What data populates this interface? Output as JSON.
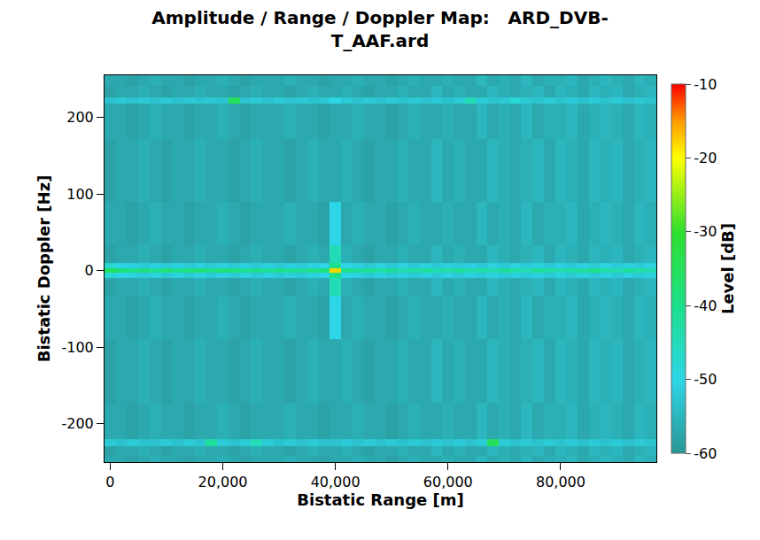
{
  "chart_data": {
    "type": "heatmap",
    "title": "Amplitude / Range / Doppler Map:   ARD_DVB-T_AAF.ard",
    "xlabel": "Bistatic Range [m]",
    "ylabel": "Bistatic Doppler [Hz]",
    "xlim": [
      -1000,
      97000
    ],
    "ylim": [
      -250,
      255
    ],
    "xticks": [
      0,
      {
        "value": 20000,
        "label": "20,000"
      },
      {
        "value": 40000,
        "label": "40,000"
      },
      {
        "value": 60000,
        "label": "60,000"
      },
      {
        "value": 80000,
        "label": "80,000"
      }
    ],
    "yticks": [
      -200,
      -100,
      0,
      100,
      200
    ],
    "grid": false,
    "x": [
      0,
      2000,
      4000,
      6000,
      8000,
      10000,
      12000,
      14000,
      16000,
      18000,
      20000,
      22000,
      24000,
      26000,
      28000,
      30000,
      32000,
      34000,
      36000,
      38000,
      40000,
      42000,
      44000,
      46000,
      48000,
      50000,
      52000,
      54000,
      56000,
      58000,
      60000,
      62000,
      64000,
      66000,
      68000,
      70000,
      72000,
      74000,
      76000,
      78000,
      80000,
      82000,
      84000,
      86000,
      88000,
      90000,
      92000,
      94000,
      96000
    ],
    "y": [
      -250,
      -234,
      -225,
      -216,
      -130,
      -50,
      -15,
      -5,
      0,
      5,
      15,
      50,
      130,
      213,
      222,
      231,
      250
    ],
    "z": [
      [
        -57,
        -57,
        -58,
        -57,
        -56,
        -57,
        -57,
        -58,
        -57,
        -57,
        -56,
        -57,
        -58,
        -57,
        -57,
        -57,
        -56,
        -57,
        -57,
        -58,
        -57,
        -57,
        -56,
        -57,
        -57,
        -58,
        -57,
        -56,
        -57,
        -57,
        -56,
        -57,
        -57,
        -55,
        -57,
        -56,
        -57,
        -55,
        -57,
        -56,
        -56,
        -55,
        -57,
        -56,
        -55,
        -56,
        -57,
        -55,
        -56
      ],
      [
        -58,
        -57,
        -57,
        -56,
        -57,
        -58,
        -57,
        -57,
        -56,
        -57,
        -57,
        -58,
        -57,
        -56,
        -57,
        -57,
        -58,
        -57,
        -56,
        -57,
        -57,
        -56,
        -57,
        -58,
        -57,
        -57,
        -56,
        -57,
        -57,
        -55,
        -57,
        -56,
        -57,
        -57,
        -55,
        -56,
        -57,
        -56,
        -55,
        -57,
        -55,
        -56,
        -57,
        -55,
        -56,
        -55,
        -57,
        -56,
        -55
      ],
      [
        -52,
        -53,
        -52,
        -53,
        -53,
        -52,
        -53,
        -52,
        -53,
        -42,
        -52,
        -53,
        -52,
        -45,
        -52,
        -53,
        -52,
        -53,
        -52,
        -53,
        -53,
        -52,
        -53,
        -52,
        -53,
        -52,
        -53,
        -52,
        -53,
        -52,
        -53,
        -52,
        -53,
        -52,
        -35,
        -52,
        -53,
        -52,
        -53,
        -52,
        -53,
        -52,
        -53,
        -52,
        -53,
        -52,
        -53,
        -52,
        -53
      ],
      [
        -57,
        -57,
        -58,
        -57,
        -56,
        -57,
        -57,
        -58,
        -57,
        -57,
        -56,
        -57,
        -58,
        -57,
        -57,
        -57,
        -56,
        -57,
        -57,
        -58,
        -57,
        -57,
        -56,
        -57,
        -57,
        -58,
        -57,
        -56,
        -57,
        -57,
        -56,
        -57,
        -57,
        -55,
        -57,
        -56,
        -57,
        -55,
        -57,
        -56,
        -56,
        -55,
        -57,
        -56,
        -55,
        -56,
        -57,
        -55,
        -56
      ],
      [
        -58,
        -57,
        -57,
        -56,
        -57,
        -58,
        -57,
        -57,
        -56,
        -57,
        -57,
        -58,
        -57,
        -56,
        -57,
        -57,
        -58,
        -57,
        -56,
        -57,
        -57,
        -56,
        -57,
        -58,
        -57,
        -57,
        -56,
        -57,
        -57,
        -55,
        -57,
        -56,
        -57,
        -57,
        -55,
        -56,
        -57,
        -56,
        -55,
        -57,
        -55,
        -56,
        -57,
        -55,
        -56,
        -55,
        -57,
        -56,
        -55
      ],
      [
        -57,
        -57,
        -58,
        -57,
        -56,
        -57,
        -57,
        -58,
        -57,
        -57,
        -56,
        -57,
        -58,
        -57,
        -57,
        -57,
        -56,
        -57,
        -57,
        -58,
        -50,
        -57,
        -56,
        -57,
        -57,
        -58,
        -57,
        -56,
        -57,
        -57,
        -56,
        -57,
        -57,
        -55,
        -57,
        -56,
        -57,
        -55,
        -57,
        -56,
        -56,
        -55,
        -57,
        -56,
        -55,
        -56,
        -57,
        -55,
        -56
      ],
      [
        -58,
        -57,
        -57,
        -56,
        -57,
        -58,
        -57,
        -57,
        -56,
        -57,
        -57,
        -58,
        -57,
        -56,
        -57,
        -57,
        -58,
        -57,
        -56,
        -57,
        -45,
        -56,
        -57,
        -58,
        -57,
        -57,
        -56,
        -57,
        -57,
        -55,
        -57,
        -56,
        -57,
        -57,
        -55,
        -56,
        -57,
        -56,
        -55,
        -57,
        -55,
        -56,
        -57,
        -55,
        -56,
        -55,
        -57,
        -56,
        -55
      ],
      [
        -48,
        -50,
        -51,
        -52,
        -51,
        -52,
        -51,
        -52,
        -51,
        -52,
        -51,
        -52,
        -51,
        -52,
        -51,
        -52,
        -51,
        -52,
        -51,
        -50,
        -40,
        -50,
        -51,
        -52,
        -51,
        -52,
        -51,
        -52,
        -51,
        -52,
        -51,
        -52,
        -51,
        -52,
        -51,
        -52,
        -51,
        -52,
        -51,
        -52,
        -51,
        -52,
        -51,
        -52,
        -51,
        -52,
        -51,
        -52,
        -51
      ],
      [
        -36,
        -38,
        -40,
        -39,
        -41,
        -38,
        -40,
        -39,
        -38,
        -40,
        -38,
        -39,
        -41,
        -40,
        -42,
        -40,
        -41,
        -42,
        -40,
        -39,
        -18,
        -40,
        -42,
        -41,
        -43,
        -42,
        -44,
        -43,
        -42,
        -44,
        -43,
        -42,
        -44,
        -43,
        -44,
        -42,
        -43,
        -44,
        -42,
        -43,
        -44,
        -43,
        -42,
        -40,
        -43,
        -44,
        -42,
        -43,
        -44
      ],
      [
        -48,
        -50,
        -51,
        -52,
        -51,
        -52,
        -51,
        -52,
        -51,
        -52,
        -51,
        -52,
        -51,
        -52,
        -51,
        -52,
        -51,
        -52,
        -51,
        -50,
        -40,
        -50,
        -51,
        -52,
        -51,
        -52,
        -51,
        -52,
        -51,
        -52,
        -51,
        -52,
        -51,
        -52,
        -51,
        -52,
        -51,
        -52,
        -51,
        -52,
        -51,
        -52,
        -51,
        -52,
        -51,
        -52,
        -51,
        -52,
        -51
      ],
      [
        -58,
        -57,
        -57,
        -56,
        -57,
        -58,
        -57,
        -57,
        -56,
        -57,
        -57,
        -58,
        -57,
        -56,
        -57,
        -57,
        -58,
        -57,
        -56,
        -57,
        -45,
        -56,
        -57,
        -58,
        -57,
        -57,
        -56,
        -57,
        -57,
        -55,
        -57,
        -56,
        -57,
        -57,
        -55,
        -56,
        -57,
        -56,
        -55,
        -57,
        -55,
        -56,
        -57,
        -55,
        -56,
        -55,
        -57,
        -56,
        -55
      ],
      [
        -57,
        -57,
        -58,
        -57,
        -56,
        -57,
        -57,
        -58,
        -57,
        -57,
        -56,
        -57,
        -58,
        -57,
        -57,
        -57,
        -56,
        -57,
        -57,
        -58,
        -50,
        -57,
        -56,
        -57,
        -57,
        -58,
        -57,
        -56,
        -57,
        -57,
        -56,
        -57,
        -57,
        -55,
        -57,
        -56,
        -57,
        -55,
        -57,
        -56,
        -56,
        -55,
        -57,
        -56,
        -55,
        -56,
        -57,
        -55,
        -56
      ],
      [
        -58,
        -57,
        -57,
        -56,
        -57,
        -58,
        -57,
        -57,
        -56,
        -57,
        -57,
        -58,
        -57,
        -56,
        -57,
        -57,
        -58,
        -57,
        -56,
        -57,
        -57,
        -56,
        -57,
        -58,
        -57,
        -57,
        -56,
        -57,
        -57,
        -55,
        -57,
        -56,
        -57,
        -57,
        -55,
        -56,
        -57,
        -56,
        -55,
        -57,
        -55,
        -56,
        -57,
        -55,
        -56,
        -55,
        -57,
        -56,
        -55
      ],
      [
        -57,
        -57,
        -58,
        -57,
        -56,
        -57,
        -57,
        -58,
        -57,
        -57,
        -56,
        -57,
        -58,
        -57,
        -57,
        -57,
        -56,
        -57,
        -57,
        -58,
        -57,
        -57,
        -56,
        -57,
        -57,
        -58,
        -57,
        -56,
        -57,
        -57,
        -56,
        -57,
        -57,
        -55,
        -57,
        -56,
        -57,
        -55,
        -57,
        -56,
        -56,
        -55,
        -57,
        -56,
        -55,
        -56,
        -57,
        -55,
        -56
      ],
      [
        -53,
        -52,
        -53,
        -52,
        -53,
        -52,
        -53,
        -52,
        -53,
        -52,
        -53,
        -35,
        -53,
        -52,
        -53,
        -52,
        -53,
        -52,
        -53,
        -52,
        -50,
        -52,
        -53,
        -52,
        -53,
        -52,
        -53,
        -52,
        -53,
        -52,
        -53,
        -52,
        -45,
        -52,
        -53,
        -52,
        -48,
        -52,
        -53,
        -52,
        -53,
        -52,
        -53,
        -52,
        -53,
        -52,
        -53,
        -52,
        -53
      ],
      [
        -58,
        -57,
        -57,
        -56,
        -57,
        -58,
        -57,
        -57,
        -56,
        -57,
        -57,
        -58,
        -57,
        -56,
        -57,
        -57,
        -58,
        -57,
        -56,
        -57,
        -57,
        -56,
        -57,
        -58,
        -57,
        -57,
        -56,
        -57,
        -57,
        -55,
        -57,
        -56,
        -57,
        -57,
        -55,
        -56,
        -57,
        -56,
        -55,
        -57,
        -55,
        -56,
        -57,
        -55,
        -56,
        -55,
        -57,
        -56,
        -55
      ],
      [
        -57,
        -57,
        -58,
        -57,
        -56,
        -57,
        -57,
        -58,
        -57,
        -57,
        -56,
        -57,
        -58,
        -57,
        -57,
        -57,
        -56,
        -57,
        -57,
        -58,
        -57,
        -57,
        -56,
        -57,
        -57,
        -58,
        -57,
        -56,
        -57,
        -57,
        -56,
        -57,
        -57,
        -55,
        -57,
        -56,
        -57,
        -55,
        -57,
        -56,
        -56,
        -55,
        -57,
        -56,
        -55,
        -56,
        -57,
        -55,
        -56
      ]
    ],
    "colorbar": {
      "title": "Level [dB]",
      "range": [
        -60,
        -10
      ],
      "ticks": [
        -10,
        -20,
        -30,
        -40,
        -50,
        -60
      ]
    }
  }
}
